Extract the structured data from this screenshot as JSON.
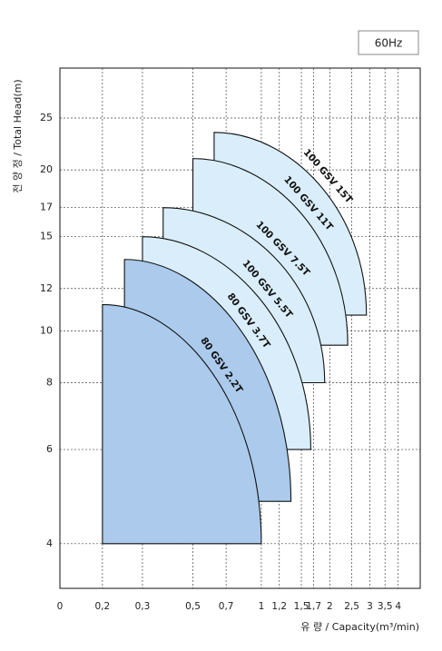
{
  "chart_data": {
    "type": "area",
    "badge": "60Hz",
    "y_label": "전 양 정 / Total Head(m)",
    "x_label": "유 량 / Capacity(m³/min)",
    "log_x": true,
    "log_y": true,
    "grid": true,
    "xlim": [
      0.13,
      5
    ],
    "ylim": [
      3.3,
      31
    ],
    "xticks": [
      {
        "value": 0.13,
        "label": "0"
      },
      {
        "value": 0.2,
        "label": "0,2"
      },
      {
        "value": 0.3,
        "label": "0,3"
      },
      {
        "value": 0.5,
        "label": "0,5"
      },
      {
        "value": 0.7,
        "label": "0,7"
      },
      1,
      {
        "value": 1.2,
        "label": "1,2"
      },
      {
        "value": 1.5,
        "label": "1,5"
      },
      {
        "value": 1.7,
        "label": "1,7"
      },
      2,
      {
        "value": 2.5,
        "label": "2,5"
      },
      3,
      {
        "value": 3.5,
        "label": "3,5"
      },
      4
    ],
    "yticks": [
      4,
      6,
      8,
      10,
      12,
      15,
      17,
      20,
      25
    ],
    "series": [
      {
        "name": "100 GSV 15T",
        "color": "#d9eefa",
        "qmin": 0.62,
        "qmax": 2.9,
        "hmax": 23.5,
        "hlow": 10.7
      },
      {
        "name": "100 GSV 11T",
        "color": "#d9eefa",
        "qmin": 0.5,
        "qmax": 2.4,
        "hmax": 21,
        "hlow": 9.4
      },
      {
        "name": "100 GSV 7.5T",
        "color": "#d9eefa",
        "qmin": 0.37,
        "qmax": 1.9,
        "hmax": 17,
        "hlow": 8
      },
      {
        "name": "100 GSV 5.5T",
        "color": "#d9eefa",
        "qmin": 0.3,
        "qmax": 1.65,
        "hmax": 15,
        "hlow": 6
      },
      {
        "name": "80 GSV 3.7T",
        "color": "#abcaec",
        "qmin": 0.25,
        "qmax": 1.35,
        "hmax": 13.6,
        "hlow": 4.8
      },
      {
        "name": "80 GSV 2.2T",
        "color": "#abcaec",
        "qmin": 0.2,
        "qmax": 1.0,
        "hmax": 11.2,
        "hlow": 4
      }
    ]
  }
}
